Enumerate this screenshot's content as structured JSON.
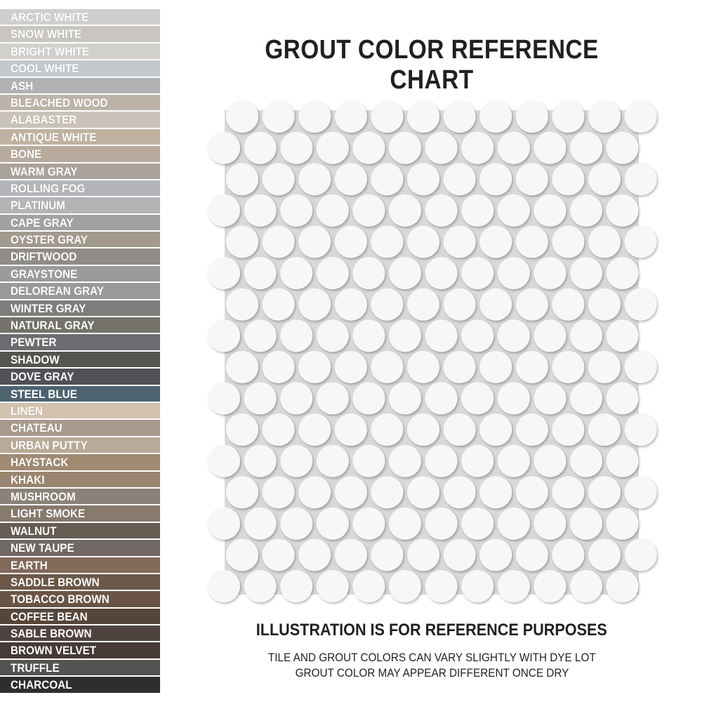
{
  "title": "GROUT COLOR REFERENCE CHART",
  "swatches": [
    {
      "label": "ARCTIC WHITE",
      "color": "#cfcfcf"
    },
    {
      "label": "SNOW WHITE",
      "color": "#c9c6c1"
    },
    {
      "label": "BRIGHT WHITE",
      "color": "#d2d0cd"
    },
    {
      "label": "COOL WHITE",
      "color": "#c4c9cd"
    },
    {
      "label": "ASH",
      "color": "#b3b2b2"
    },
    {
      "label": "BLEACHED WOOD",
      "color": "#bdb3a8"
    },
    {
      "label": "ALABASTER",
      "color": "#c8c2b8"
    },
    {
      "label": "ANTIQUE WHITE",
      "color": "#c0b1a1"
    },
    {
      "label": "BONE",
      "color": "#b8ab9d"
    },
    {
      "label": "WARM GRAY",
      "color": "#a9a29b"
    },
    {
      "label": "ROLLING FOG",
      "color": "#b3b5b8"
    },
    {
      "label": "PLATINUM",
      "color": "#b2b4b6"
    },
    {
      "label": "CAPE GRAY",
      "color": "#a2a2a0"
    },
    {
      "label": "OYSTER GRAY",
      "color": "#a39a8e"
    },
    {
      "label": "DRIFTWOOD",
      "color": "#8f8c88"
    },
    {
      "label": "GRAYSTONE",
      "color": "#9c9b99"
    },
    {
      "label": "DELOREAN GRAY",
      "color": "#9a999c"
    },
    {
      "label": "WINTER GRAY",
      "color": "#7f7d7b"
    },
    {
      "label": "NATURAL GRAY",
      "color": "#75726c"
    },
    {
      "label": "PEWTER",
      "color": "#6c6d71"
    },
    {
      "label": "SHADOW",
      "color": "#55544f"
    },
    {
      "label": "DOVE GRAY",
      "color": "#4f5156"
    },
    {
      "label": "STEEL BLUE",
      "color": "#4d6470"
    },
    {
      "label": "LINEN",
      "color": "#d2c2ae"
    },
    {
      "label": "CHATEAU",
      "color": "#a89a8c"
    },
    {
      "label": "URBAN PUTTY",
      "color": "#b8aa98"
    },
    {
      "label": "HAYSTACK",
      "color": "#a08a72"
    },
    {
      "label": "KHAKI",
      "color": "#9a8670"
    },
    {
      "label": "MUSHROOM",
      "color": "#8b8279"
    },
    {
      "label": "LIGHT SMOKE",
      "color": "#87796b"
    },
    {
      "label": "WALNUT",
      "color": "#665c52"
    },
    {
      "label": "NEW TAUPE",
      "color": "#6f6865"
    },
    {
      "label": "EARTH",
      "color": "#82695a"
    },
    {
      "label": "SADDLE BROWN",
      "color": "#6b5849"
    },
    {
      "label": "TOBACCO BROWN",
      "color": "#6a5445"
    },
    {
      "label": "COFFEE BEAN",
      "color": "#56463a"
    },
    {
      "label": "SABLE BROWN",
      "color": "#4f4340"
    },
    {
      "label": "BROWN VELVET",
      "color": "#453a35"
    },
    {
      "label": "TRUFFLE",
      "color": "#555352"
    },
    {
      "label": "CHARCOAL",
      "color": "#2e2d30"
    }
  ],
  "mosaic": {
    "tile_color": "#f7f7f7",
    "grout_color": "#d9d9d9",
    "rows": 16,
    "tiles_per_row": 12
  },
  "footer": {
    "heading": "ILLUSTRATION IS FOR REFERENCE PURPOSES",
    "line1": "TILE AND GROUT COLORS CAN VARY SLIGHTLY WITH DYE LOT",
    "line2": "GROUT COLOR MAY APPEAR DIFFERENT ONCE DRY"
  }
}
